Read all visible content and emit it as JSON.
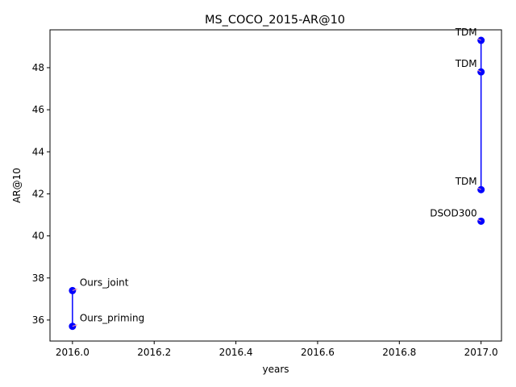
{
  "chart_data": {
    "type": "scatter",
    "title": "MS_COCO_2015-AR@10",
    "xlabel": "years",
    "ylabel": "AR@10",
    "xlim": [
      2015.945,
      2017.05
    ],
    "ylim": [
      35.0,
      49.8
    ],
    "xticks": [
      2016.0,
      2016.2,
      2016.4,
      2016.6,
      2016.8,
      2017.0
    ],
    "xtick_labels": [
      "2016.0",
      "2016.2",
      "2016.4",
      "2016.6",
      "2016.8",
      "2017.0"
    ],
    "yticks": [
      36,
      38,
      40,
      42,
      44,
      46,
      48
    ],
    "ytick_labels": [
      "36",
      "38",
      "40",
      "42",
      "44",
      "46",
      "48"
    ],
    "grid": false,
    "series_color": "#0000ff",
    "annotation_arrow_color": "#ff9999",
    "points": [
      {
        "x": 2017.0,
        "y": 49.3,
        "label": "TDM"
      },
      {
        "x": 2017.0,
        "y": 47.8,
        "label": "TDM"
      },
      {
        "x": 2017.0,
        "y": 42.2,
        "label": "TDM"
      },
      {
        "x": 2017.0,
        "y": 40.7,
        "label": "DSOD300"
      },
      {
        "x": 2016.0,
        "y": 37.4,
        "label": "Ours_joint"
      },
      {
        "x": 2016.0,
        "y": 35.7,
        "label": "Ours_priming"
      }
    ],
    "lines": [
      {
        "x": [
          2017.0,
          2017.0
        ],
        "y": [
          49.3,
          42.2
        ]
      },
      {
        "x": [
          2016.0,
          2016.0
        ],
        "y": [
          37.4,
          35.7
        ]
      }
    ]
  }
}
